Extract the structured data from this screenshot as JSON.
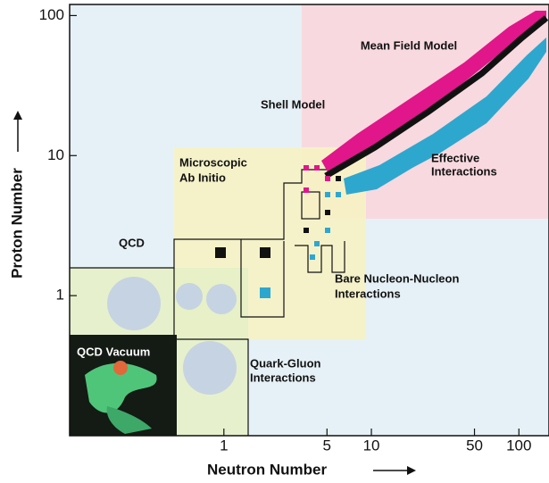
{
  "chart_data": {
    "type": "region-map",
    "x_label": "Neutron Number",
    "y_label": "Proton Number",
    "xscale": "log",
    "yscale": "log",
    "xlim": [
      0.09,
      160
    ],
    "ylim": [
      0.1,
      120
    ],
    "xticks": [
      1,
      5,
      10,
      50,
      100
    ],
    "yticks": [
      1,
      10,
      100
    ],
    "regions": [
      [
        "Mean Field Model"
      ],
      [
        "Shell Model"
      ],
      [
        "Microscopic",
        "Ab Initio"
      ],
      [
        "Effective",
        "Interactions"
      ],
      [
        "QCD"
      ],
      [
        "Bare Nucleon-Nucleon",
        "Interactions"
      ],
      [
        "QCD Vacuum"
      ],
      [
        "Quark-Gluon",
        "Interactions"
      ]
    ]
  }
}
